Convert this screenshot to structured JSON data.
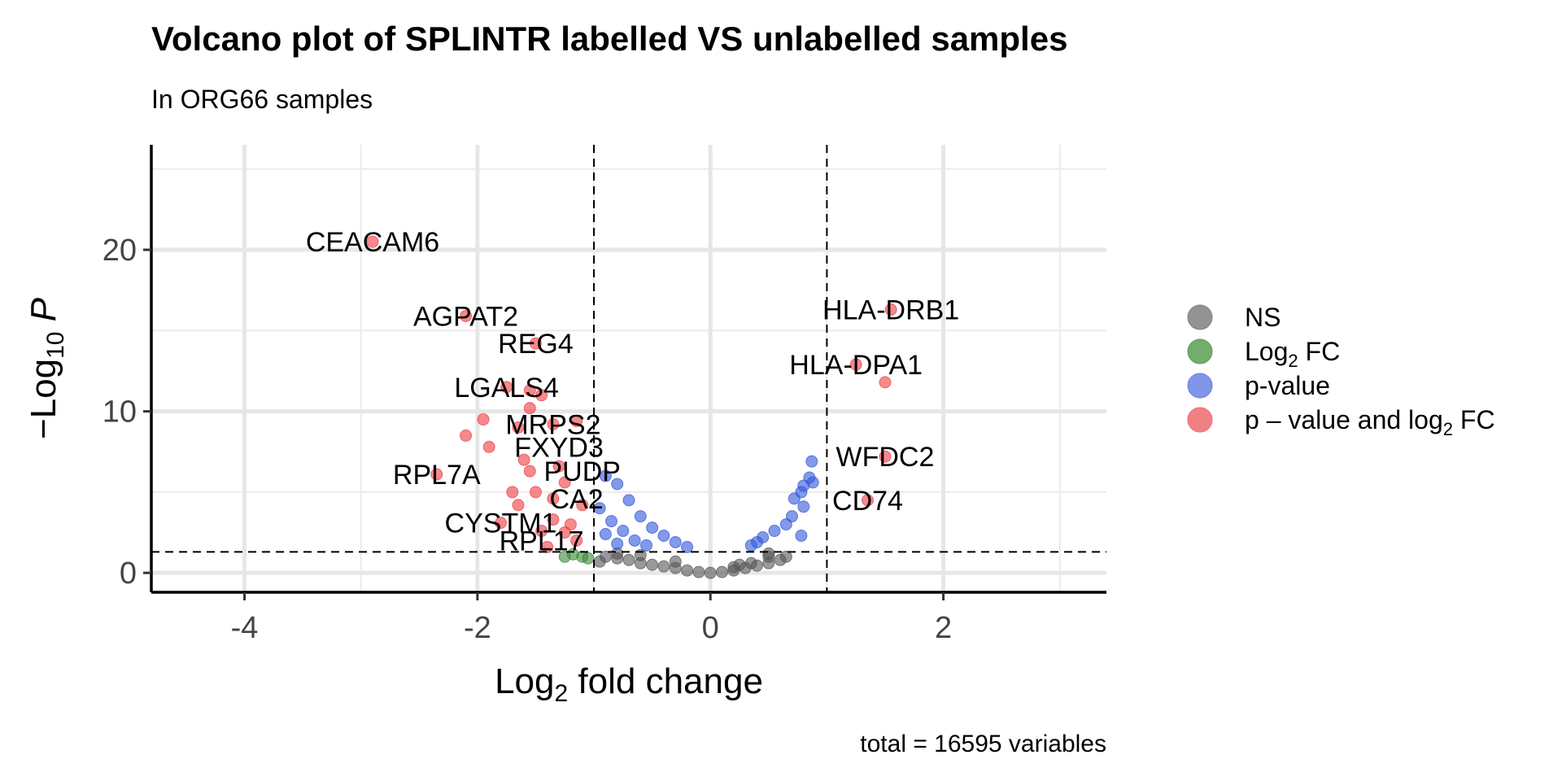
{
  "chart_data": {
    "type": "scatter",
    "title": "Volcano plot of SPLINTR labelled VS unlabelled samples",
    "subtitle": "In ORG66 samples",
    "caption": "total = 16595 variables",
    "xlabel": "Log2 fold change",
    "ylabel": "-Log10 P",
    "xlim": [
      -4.8,
      3.4
    ],
    "ylim": [
      -1.2,
      26.5
    ],
    "x_ticks": [
      -4,
      -2,
      0,
      2
    ],
    "y_ticks": [
      0,
      10,
      20
    ],
    "x_tick_labels": [
      "-4",
      "-2",
      "0",
      "2"
    ],
    "y_tick_labels": [
      "0",
      "10",
      "20"
    ],
    "grid": true,
    "fc_cutoffs": [
      -1,
      1
    ],
    "p_cutoff_neglog10": 1.3,
    "legend": {
      "position": "right",
      "entries": [
        {
          "name": "NS",
          "color": "#808080"
        },
        {
          "name": "Log2 FC",
          "color": "#5a9e52"
        },
        {
          "name": "p-value",
          "color": "#6a82e6"
        },
        {
          "name": "p – value and log2 FC",
          "color": "#ee6a6e"
        }
      ]
    },
    "colors": {
      "NS": "#555555",
      "FC": "#3a8a35",
      "P": "#2f56d8",
      "FC_P": "#ee3a40"
    },
    "series": [
      {
        "name": "NS",
        "points": [
          [
            -0.9,
            1.0
          ],
          [
            -0.8,
            0.9
          ],
          [
            -0.7,
            0.8
          ],
          [
            -0.6,
            0.6
          ],
          [
            -0.5,
            0.5
          ],
          [
            -0.4,
            0.4
          ],
          [
            -0.3,
            0.3
          ],
          [
            -0.2,
            0.15
          ],
          [
            -0.1,
            0.05
          ],
          [
            0.0,
            0.0
          ],
          [
            0.1,
            0.05
          ],
          [
            0.2,
            0.15
          ],
          [
            0.3,
            0.3
          ],
          [
            0.4,
            0.45
          ],
          [
            0.5,
            0.6
          ],
          [
            0.6,
            0.8
          ],
          [
            0.5,
            1.0
          ],
          [
            -0.6,
            1.1
          ],
          [
            -0.8,
            1.2
          ],
          [
            0.2,
            0.35
          ],
          [
            0.35,
            0.6
          ],
          [
            0.5,
            1.2
          ],
          [
            -0.95,
            0.7
          ],
          [
            0.65,
            1.0
          ],
          [
            0.25,
            0.5
          ],
          [
            -0.3,
            0.7
          ]
        ]
      },
      {
        "name": "Log2 FC",
        "points": [
          [
            -1.25,
            1.0
          ],
          [
            -1.1,
            1.0
          ],
          [
            -1.05,
            0.9
          ],
          [
            -1.18,
            1.15
          ]
        ]
      },
      {
        "name": "p-value",
        "points": [
          [
            0.87,
            6.9
          ],
          [
            0.85,
            5.9
          ],
          [
            0.88,
            5.6
          ],
          [
            0.8,
            5.4
          ],
          [
            0.78,
            5.0
          ],
          [
            0.72,
            4.6
          ],
          [
            0.8,
            4.1
          ],
          [
            0.7,
            3.5
          ],
          [
            0.65,
            3.0
          ],
          [
            0.55,
            2.6
          ],
          [
            0.45,
            2.2
          ],
          [
            0.4,
            1.9
          ],
          [
            0.35,
            1.7
          ],
          [
            0.78,
            2.3
          ],
          [
            -0.8,
            5.5
          ],
          [
            -0.7,
            4.5
          ],
          [
            -0.6,
            3.5
          ],
          [
            -0.5,
            2.8
          ],
          [
            -0.4,
            2.3
          ],
          [
            -0.3,
            1.9
          ],
          [
            -0.2,
            1.6
          ],
          [
            -0.9,
            6.0
          ],
          [
            -0.85,
            3.2
          ],
          [
            -0.75,
            2.6
          ],
          [
            -0.65,
            2.0
          ],
          [
            -0.55,
            1.7
          ],
          [
            -0.95,
            4.0
          ],
          [
            -0.9,
            2.4
          ],
          [
            -0.8,
            1.8
          ]
        ]
      },
      {
        "name": "p – value and log2 FC",
        "points": [
          [
            -2.9,
            20.5
          ],
          [
            -2.1,
            15.9
          ],
          [
            -1.5,
            14.2
          ],
          [
            -1.75,
            11.5
          ],
          [
            -1.55,
            11.3
          ],
          [
            -1.45,
            11.0
          ],
          [
            -1.95,
            9.5
          ],
          [
            -1.35,
            9.2
          ],
          [
            -1.15,
            9.4
          ],
          [
            -2.1,
            8.5
          ],
          [
            -1.9,
            7.8
          ],
          [
            -2.35,
            6.1
          ],
          [
            -1.3,
            6.6
          ],
          [
            -1.55,
            6.3
          ],
          [
            -1.25,
            5.6
          ],
          [
            -1.5,
            5.0
          ],
          [
            -1.35,
            4.6
          ],
          [
            -1.65,
            4.2
          ],
          [
            -1.8,
            3.1
          ],
          [
            -1.35,
            3.3
          ],
          [
            -1.45,
            2.6
          ],
          [
            -1.25,
            2.5
          ],
          [
            -1.15,
            2.0
          ],
          [
            -1.4,
            1.6
          ],
          [
            -1.2,
            3.0
          ],
          [
            -1.6,
            7.0
          ],
          [
            -1.7,
            5.0
          ],
          [
            -1.1,
            4.2
          ],
          [
            -1.55,
            10.2
          ],
          [
            -1.65,
            9.0
          ],
          [
            1.55,
            16.3
          ],
          [
            1.25,
            12.9
          ],
          [
            1.5,
            11.8
          ],
          [
            1.5,
            7.2
          ],
          [
            1.35,
            4.5
          ]
        ]
      }
    ],
    "labels": [
      {
        "text": "CEACAM6",
        "x": -2.9,
        "y": 20.5
      },
      {
        "text": "AGPAT2",
        "x": -2.1,
        "y": 15.9
      },
      {
        "text": "REG4",
        "x": -1.5,
        "y": 14.2
      },
      {
        "text": "LGALS4",
        "x": -1.75,
        "y": 11.5
      },
      {
        "text": "MRPS2",
        "x": -1.35,
        "y": 9.2
      },
      {
        "text": "FXYD3",
        "x": -1.3,
        "y": 7.8
      },
      {
        "text": "RPL7A",
        "x": -2.35,
        "y": 6.1
      },
      {
        "text": "PUDP",
        "x": -1.1,
        "y": 6.3
      },
      {
        "text": "CA2",
        "x": -1.15,
        "y": 4.6
      },
      {
        "text": "CYSTM1",
        "x": -1.8,
        "y": 3.1
      },
      {
        "text": "RPL17",
        "x": -1.45,
        "y": 2.0
      },
      {
        "text": "HLA-DRB1",
        "x": 1.55,
        "y": 16.3
      },
      {
        "text": "HLA-DPA1",
        "x": 1.25,
        "y": 12.9
      },
      {
        "text": "WFDC2",
        "x": 1.5,
        "y": 7.2
      },
      {
        "text": "CD74",
        "x": 1.35,
        "y": 4.5
      }
    ]
  }
}
